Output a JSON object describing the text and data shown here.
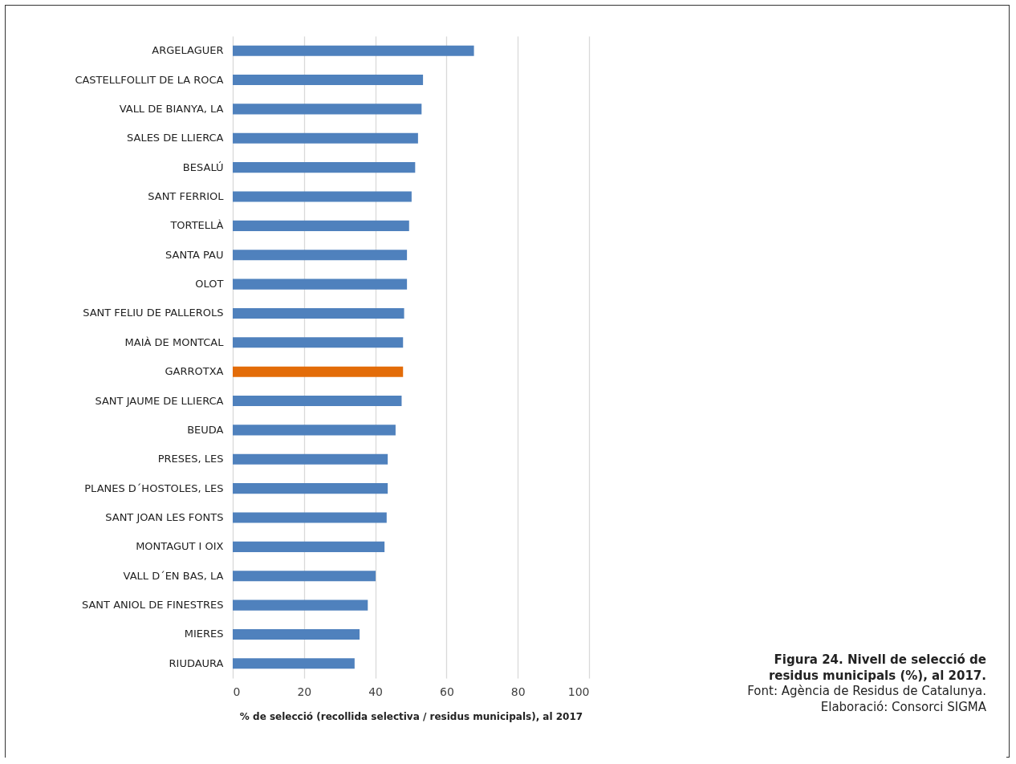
{
  "chart_data": {
    "type": "bar",
    "orientation": "horizontal",
    "categories": [
      "ARGELAGUER",
      "CASTELLFOLLIT DE LA ROCA",
      "VALL DE BIANYA, LA",
      "SALES DE LLIERCA",
      "BESALÚ",
      "SANT FERRIOL",
      "TORTELLÀ",
      "SANTA PAU",
      "OLOT",
      "SANT FELIU DE PALLEROLS",
      "MAIÀ DE MONTCAL",
      "GARROTXA",
      "SANT JAUME DE LLIERCA",
      "BEUDA",
      "PRESES, LES",
      "PLANES D´HOSTOLES, LES",
      "SANT JOAN LES FONTS",
      "MONTAGUT I OIX",
      "VALL D´EN BAS, LA",
      "SANT ANIOL DE FINESTRES",
      "MIERES",
      "RIUDAURA"
    ],
    "values": [
      67.7,
      53.4,
      53.0,
      52.0,
      51.2,
      50.2,
      49.5,
      48.9,
      48.9,
      48.1,
      47.8,
      47.8,
      47.4,
      45.7,
      43.5,
      43.5,
      43.2,
      42.6,
      40.1,
      37.9,
      35.6,
      34.2
    ],
    "colors": [
      "#4f81bd",
      "#4f81bd",
      "#4f81bd",
      "#4f81bd",
      "#4f81bd",
      "#4f81bd",
      "#4f81bd",
      "#4f81bd",
      "#4f81bd",
      "#4f81bd",
      "#4f81bd",
      "#e36c09",
      "#4f81bd",
      "#4f81bd",
      "#4f81bd",
      "#4f81bd",
      "#4f81bd",
      "#4f81bd",
      "#4f81bd",
      "#4f81bd",
      "#4f81bd",
      "#4f81bd"
    ],
    "xlim": [
      0,
      100
    ],
    "xticks": [
      0,
      20,
      40,
      60,
      80,
      100
    ],
    "grid": "x",
    "xlabel": "% de selecció (recollida selectiva / residus municipals), al 2017",
    "annotations": [
      "Figura 24. Nivell de selecció de residus municipals (%), al 2017.",
      "Font: Agència de Residus de Catalunya.",
      "Elaboració: Consorci SIGMA"
    ]
  }
}
